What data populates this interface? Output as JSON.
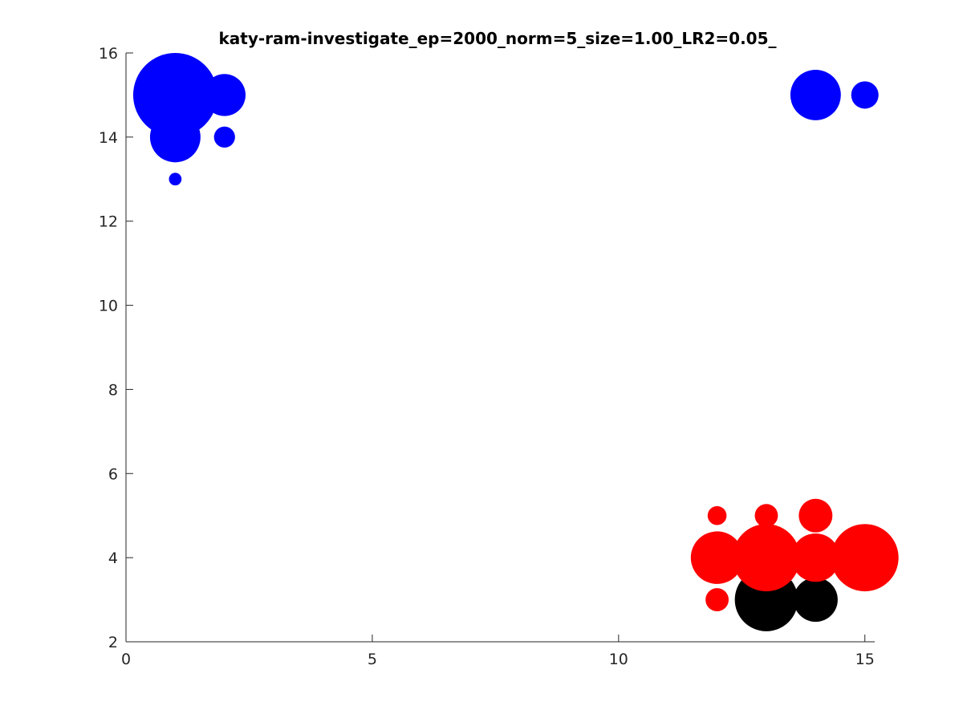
{
  "chart_data": {
    "type": "scatter",
    "title": "katy-ram-investigate_ep=2000_norm=5_size=1.00_LR2=0.05_",
    "xlabel": "",
    "ylabel": "",
    "xlim": [
      0,
      15.2
    ],
    "ylim": [
      2,
      16
    ],
    "xticks": [
      0,
      5,
      10,
      15
    ],
    "yticks": [
      2,
      4,
      6,
      8,
      10,
      12,
      14,
      16
    ],
    "grid": false,
    "marker": "filled-circle",
    "colors": {
      "blue": "#0000ff",
      "red": "#ff0000",
      "black": "#000000"
    },
    "points": [
      {
        "x": 13,
        "y": 3,
        "size": 1.5,
        "color": "black"
      },
      {
        "x": 14,
        "y": 3,
        "size": 1.05,
        "color": "black"
      },
      {
        "x": 12,
        "y": 3,
        "size": 0.55,
        "color": "red"
      },
      {
        "x": 12,
        "y": 4,
        "size": 1.25,
        "color": "red"
      },
      {
        "x": 12,
        "y": 5,
        "size": 0.45,
        "color": "red"
      },
      {
        "x": 13,
        "y": 5,
        "size": 0.55,
        "color": "red"
      },
      {
        "x": 14,
        "y": 5,
        "size": 0.8,
        "color": "red"
      },
      {
        "x": 14,
        "y": 4,
        "size": 1.15,
        "color": "red"
      },
      {
        "x": 13,
        "y": 4,
        "size": 1.6,
        "color": "red"
      },
      {
        "x": 15,
        "y": 4,
        "size": 1.6,
        "color": "red"
      },
      {
        "x": 1,
        "y": 15,
        "size": 2.0,
        "color": "blue"
      },
      {
        "x": 2,
        "y": 15,
        "size": 1.0,
        "color": "blue"
      },
      {
        "x": 1,
        "y": 14,
        "size": 1.2,
        "color": "blue"
      },
      {
        "x": 2,
        "y": 14,
        "size": 0.5,
        "color": "blue"
      },
      {
        "x": 1,
        "y": 13,
        "size": 0.3,
        "color": "blue"
      },
      {
        "x": 14,
        "y": 15,
        "size": 1.2,
        "color": "blue"
      },
      {
        "x": 15,
        "y": 15,
        "size": 0.65,
        "color": "blue"
      }
    ]
  }
}
